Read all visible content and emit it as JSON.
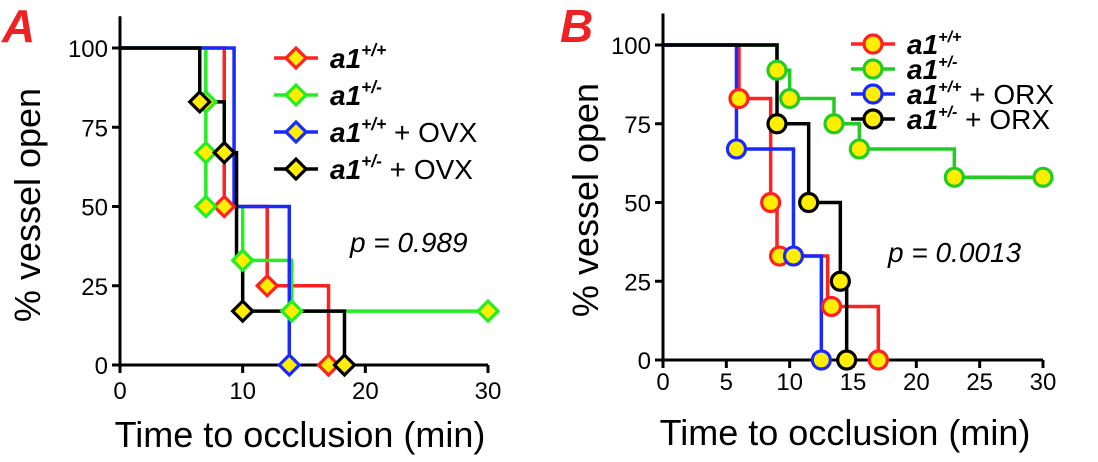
{
  "chart_data": [
    {
      "type": "line",
      "subtype": "kaplan-meier-step",
      "panel_label": "A",
      "xlabel": "Time to occlusion (min)",
      "ylabel": "% vessel open",
      "xlim": [
        0,
        30
      ],
      "ylim": [
        0,
        110
      ],
      "xticks": [
        0,
        10,
        20,
        30
      ],
      "yticks": [
        0,
        25,
        50,
        75,
        100
      ],
      "marker": "diamond",
      "annotation": "p = 0.989",
      "legend": [
        {
          "base": "a1",
          "sup": "+/+",
          "suffix": ""
        },
        {
          "base": "a1",
          "sup": "+/-",
          "suffix": ""
        },
        {
          "base": "a1",
          "sup": "+/+",
          "suffix": " + OVX"
        },
        {
          "base": "a1",
          "sup": "+/-",
          "suffix": " + OVX"
        }
      ],
      "series": [
        {
          "name": "a1+/+",
          "color": "#ff2020",
          "fill": "#ffee00",
          "steps": [
            [
              0,
              100
            ],
            [
              8.5,
              100
            ],
            [
              8.5,
              50
            ],
            [
              12,
              50
            ],
            [
              12,
              25
            ],
            [
              17,
              25
            ],
            [
              17,
              0
            ]
          ],
          "markers": [
            [
              8.5,
              50
            ],
            [
              12,
              25
            ],
            [
              17,
              0
            ]
          ]
        },
        {
          "name": "a1+/-",
          "color": "#22ee22",
          "fill": "#ffee00",
          "steps": [
            [
              0,
              100
            ],
            [
              7,
              100
            ],
            [
              7,
              83
            ],
            [
              7,
              67
            ],
            [
              7,
              50
            ],
            [
              10,
              50
            ],
            [
              10,
              33
            ],
            [
              14,
              33
            ],
            [
              14,
              17
            ],
            [
              30,
              17
            ]
          ],
          "markers": [
            [
              7,
              83
            ],
            [
              7,
              67
            ],
            [
              7,
              50
            ],
            [
              10,
              33
            ],
            [
              14,
              17
            ],
            [
              30,
              17
            ]
          ]
        },
        {
          "name": "a1+/+ + OVX",
          "color": "#1a2aff",
          "fill": "#ffee00",
          "steps": [
            [
              0,
              100
            ],
            [
              9.3,
              100
            ],
            [
              9.3,
              50
            ],
            [
              13.8,
              50
            ],
            [
              13.8,
              0
            ]
          ],
          "markers": [
            [
              13.8,
              0
            ]
          ]
        },
        {
          "name": "a1+/- + OVX",
          "color": "#000000",
          "fill": "#ffee00",
          "steps": [
            [
              0,
              100
            ],
            [
              6.5,
              100
            ],
            [
              6.5,
              83
            ],
            [
              8.5,
              83
            ],
            [
              8.5,
              67
            ],
            [
              9.5,
              67
            ],
            [
              9.5,
              33
            ],
            [
              10,
              33
            ],
            [
              10,
              17
            ],
            [
              18.3,
              17
            ],
            [
              18.3,
              0
            ]
          ],
          "markers": [
            [
              6.5,
              83
            ],
            [
              8.5,
              67
            ],
            [
              10,
              17
            ],
            [
              18.3,
              0
            ]
          ]
        }
      ]
    },
    {
      "type": "line",
      "subtype": "kaplan-meier-step",
      "panel_label": "B",
      "xlabel": "Time to occlusion (min)",
      "ylabel": "% vessel open",
      "xlim": [
        0,
        30
      ],
      "ylim": [
        0,
        110
      ],
      "xticks": [
        0,
        5,
        10,
        15,
        20,
        25,
        30
      ],
      "yticks": [
        0,
        25,
        50,
        75,
        100
      ],
      "marker": "circle",
      "annotation": "p = 0.0013",
      "legend": [
        {
          "base": "a1",
          "sup": "+/+",
          "suffix": ""
        },
        {
          "base": "a1",
          "sup": "+/-",
          "suffix": ""
        },
        {
          "base": "a1",
          "sup": "+/+",
          "suffix": " + ORX"
        },
        {
          "base": "a1",
          "sup": "+/-",
          "suffix": " + ORX"
        }
      ],
      "series": [
        {
          "name": "a1+/+",
          "color": "#ff2020",
          "fill": "#ffee00",
          "steps": [
            [
              0,
              100
            ],
            [
              6,
              100
            ],
            [
              6,
              83
            ],
            [
              8.5,
              83
            ],
            [
              8.5,
              50
            ],
            [
              9,
              50
            ],
            [
              9,
              33
            ],
            [
              13,
              33
            ],
            [
              13,
              17
            ],
            [
              17,
              17
            ],
            [
              17,
              0
            ]
          ],
          "markers": [
            [
              6,
              83
            ],
            [
              8.5,
              50
            ],
            [
              9.2,
              33
            ],
            [
              13.3,
              17
            ],
            [
              17,
              0
            ]
          ]
        },
        {
          "name": "a1+/-",
          "color": "#22cc22",
          "fill": "#ffee00",
          "steps": [
            [
              0,
              100
            ],
            [
              9,
              100
            ],
            [
              9,
              92
            ],
            [
              10,
              92
            ],
            [
              10,
              83
            ],
            [
              13.5,
              83
            ],
            [
              13.5,
              75
            ],
            [
              15.5,
              75
            ],
            [
              15.5,
              67
            ],
            [
              23,
              67
            ],
            [
              23,
              58
            ],
            [
              30,
              58
            ]
          ],
          "markers": [
            [
              9,
              92
            ],
            [
              10,
              83
            ],
            [
              13.5,
              75
            ],
            [
              15.5,
              67
            ],
            [
              23,
              58
            ],
            [
              30,
              58
            ]
          ],
          "censor_start_marker": true
        },
        {
          "name": "a1+/+ + ORX",
          "color": "#1a2aff",
          "fill": "#ffee00",
          "steps": [
            [
              0,
              100
            ],
            [
              5.8,
              100
            ],
            [
              5.8,
              67
            ],
            [
              10.3,
              67
            ],
            [
              10.3,
              33
            ],
            [
              12.5,
              33
            ],
            [
              12.5,
              0
            ]
          ],
          "markers": [
            [
              5.8,
              67
            ],
            [
              10.3,
              33
            ],
            [
              12.5,
              0
            ]
          ]
        },
        {
          "name": "a1+/- + ORX",
          "color": "#000000",
          "fill": "#ffee00",
          "steps": [
            [
              0,
              100
            ],
            [
              9,
              100
            ],
            [
              9,
              75
            ],
            [
              11.5,
              75
            ],
            [
              11.5,
              50
            ],
            [
              14,
              50
            ],
            [
              14,
              25
            ],
            [
              14.5,
              25
            ],
            [
              14.5,
              0
            ]
          ],
          "markers": [
            [
              9,
              75
            ],
            [
              11.5,
              50
            ],
            [
              14,
              25
            ],
            [
              14.5,
              0
            ]
          ]
        }
      ]
    }
  ]
}
